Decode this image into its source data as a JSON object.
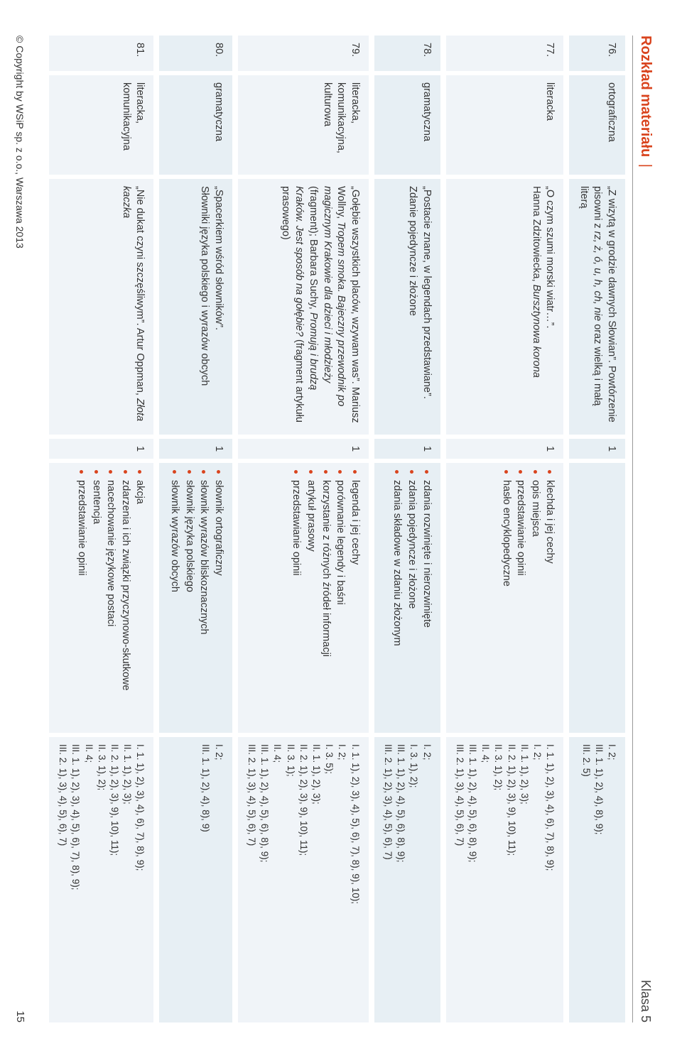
{
  "header": {
    "left": "Rozkład materiału",
    "right": "Klasa 5"
  },
  "footer": {
    "copyright": "© Copyright by WSiP sp. z o.o., Warszawa 2013",
    "page": "15"
  },
  "rows": [
    {
      "num": "76.",
      "type": "ortograficzna",
      "topic_html": "„Z wizytą w grodzie dawnych Słowian”. Powtórzenie pisowni z <em>rz, ż, ó, u, h, ch, nie</em> oraz wielką i małą literą",
      "hours": "1",
      "bullets": [],
      "refs": [
        "I. 2;",
        "III. 1. 1), 2), 4), 8), 9);",
        "III. 2. 5)"
      ]
    },
    {
      "num": "77.",
      "type": "literacka",
      "topic_html": "„O czym szumi morski wiatr…”.<br>Hanna Zdzitowiecka, <em>Bursztynowa korona</em>",
      "hours": "1",
      "bullets": [
        "klechda i jej cechy",
        "opis miejsca",
        "przedstawianie opinii",
        "hasło encyklopedyczne"
      ],
      "refs": [
        "I. 1. 1), 2), 3), 4), 6), 7), 8), 9);",
        "I. 2;",
        "II. 1. 1), 2), 3);",
        "II. 2. 1), 2), 3), 9), 10), 11);",
        "II. 3. 1), 2);",
        "II. 4;",
        "III. 1. 1), 2), 4), 5), 6), 8), 9);",
        "III. 2. 1), 3), 4), 5), 6), 7)"
      ]
    },
    {
      "num": "78.",
      "type": "gramatyczna",
      "topic_html": "„Postacie znane, w legendach przedstawiane”. Zdanie pojedyncze i złożone",
      "hours": "1",
      "bullets": [
        "zdania rozwinięte i nierozwinięte",
        "zdania pojedyncze i złożone",
        "zdania składowe w zdaniu złożonym"
      ],
      "refs": [
        "I. 2;",
        "I. 3. 1), 2);",
        "III. 1. 1), 2), 4), 5), 6), 8), 9);",
        "III. 2. 1), 2), 3), 4), 5), 6), 7)"
      ]
    },
    {
      "num": "79.",
      "type": "literacka, komunikacyjna, kulturowa",
      "topic_html": "„Gołębie wszystkich placów, wzywam was”. Mariusz Wollny, <em>Tropem smoka. Bajeczny przewodnik po magicznym Krakowie dla dzieci i młodzieży</em> (fragment); Barbara Suchy, <em>Promują i brudzą Kraków. Jest sposób na gołębie?</em> (fragment artykułu prasowego)",
      "hours": "1",
      "bullets": [
        "legenda i jej cechy",
        "porównanie legendy i baśni",
        "korzystanie z różnych źródeł informacji",
        "artykuł prasowy",
        "przedstawianie opinii"
      ],
      "refs": [
        "I. 1. 1), 2), 3), 4), 5), 6), 7), 8), 9), 10);",
        "I. 2;",
        "I. 3. 5);",
        "II. 1. 1), 2), 3);",
        "II. 2. 1), 2), 3), 9), 10), 11);",
        "II. 3. 1);",
        "II. 4;",
        "III. 1. 1), 2), 4), 5), 6), 8), 9);",
        "III. 2. 1), 3), 4), 5), 6), 7)"
      ]
    },
    {
      "num": "80.",
      "type": "gramatyczna",
      "topic_html": "„Spacerkiem wśród słowników”.<br>Słowniki języka polskiego i wyrazów obcych",
      "hours": "1",
      "bullets": [
        "słownik ortograficzny",
        "słownik wyrazów bliskoznacznych",
        "słownik języka polskiego",
        "słownik wyrazów obcych"
      ],
      "refs": [
        "I. 2;",
        "III. 1. 1), 2), 4), 8), 9)"
      ]
    },
    {
      "num": "81.",
      "type": "literacka, komunikacyjna",
      "topic_html": "„Nie dukat czyni szczęśliwym”. Artur Oppman, <em>Złota kaczka</em>",
      "hours": "1",
      "bullets": [
        "akcja",
        "zdarzenia i ich związki przyczynowo-skutkowe",
        "nacechowanie językowe postaci",
        "sentencja",
        "przedstawianie opinii"
      ],
      "refs": [
        "I. 1. 1), 2), 3), 4), 6), 7), 8), 9);",
        "II. 1. 1), 2), 3);",
        "II. 2. 1), 2), 3), 9), 10), 11);",
        "II. 3. 1), 2);",
        "II. 4;",
        "III. 1. 1), 2), 3), 4), 5), 6), 7), 8), 9);",
        "III. 2. 1), 3), 4), 5), 6), 7)"
      ]
    }
  ]
}
